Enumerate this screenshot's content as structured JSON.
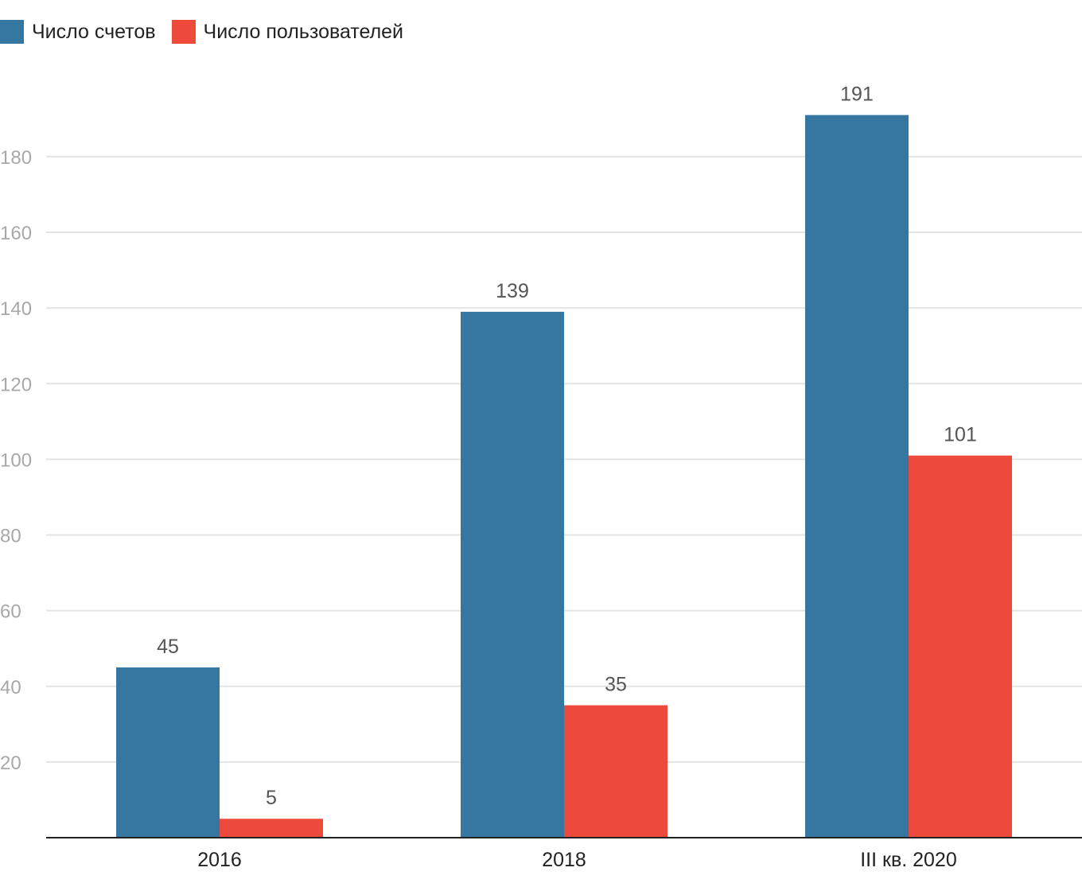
{
  "chart_data": {
    "type": "bar",
    "title": "",
    "xlabel": "",
    "ylabel": "",
    "categories": [
      "2016",
      "2018",
      "III кв. 2020"
    ],
    "series": [
      {
        "name": "Число счетов",
        "color": "#3677a2",
        "values": [
          45,
          139,
          191
        ]
      },
      {
        "name": "Число пользователей",
        "color": "#ee4a3b",
        "values": [
          5,
          35,
          101
        ]
      }
    ],
    "ylim": [
      0,
      200
    ],
    "yticks": [
      20,
      40,
      60,
      80,
      100,
      120,
      140,
      160,
      180
    ],
    "data_labels": true,
    "grid": true,
    "legend_position": "top-left"
  }
}
